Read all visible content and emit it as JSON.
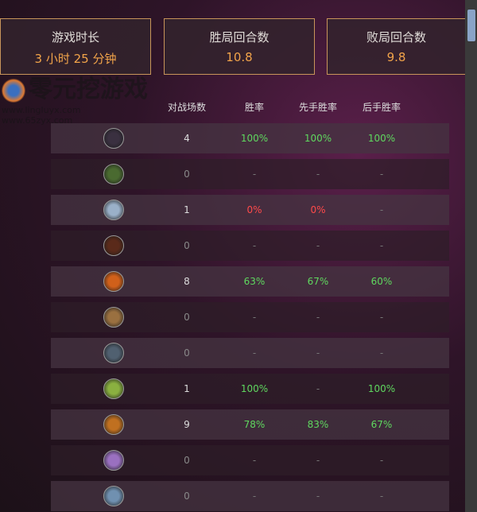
{
  "summary": [
    {
      "title": "游戏时长",
      "value": "3 小时 25 分钟"
    },
    {
      "title": "胜局回合数",
      "value": "10.8"
    },
    {
      "title": "败局回合数",
      "value": "9.8"
    }
  ],
  "table": {
    "headers": [
      "对战场数",
      "胜率",
      "先手胜率",
      "后手胜率"
    ],
    "rows": [
      {
        "icon": "class-icon-1",
        "games": "4",
        "win": "100%",
        "first": "100%",
        "second": "100%"
      },
      {
        "icon": "class-icon-2",
        "games": "0",
        "win": "-",
        "first": "-",
        "second": "-"
      },
      {
        "icon": "class-icon-3",
        "games": "1",
        "win": "0%",
        "first": "0%",
        "second": "-"
      },
      {
        "icon": "class-icon-4",
        "games": "0",
        "win": "-",
        "first": "-",
        "second": "-"
      },
      {
        "icon": "class-icon-5",
        "games": "8",
        "win": "63%",
        "first": "67%",
        "second": "60%"
      },
      {
        "icon": "class-icon-6",
        "games": "0",
        "win": "-",
        "first": "-",
        "second": "-"
      },
      {
        "icon": "class-icon-7",
        "games": "0",
        "win": "-",
        "first": "-",
        "second": "-"
      },
      {
        "icon": "class-icon-8",
        "games": "1",
        "win": "100%",
        "first": "-",
        "second": "100%"
      },
      {
        "icon": "class-icon-9",
        "games": "9",
        "win": "78%",
        "first": "83%",
        "second": "67%"
      },
      {
        "icon": "class-icon-10",
        "games": "0",
        "win": "-",
        "first": "-",
        "second": "-"
      },
      {
        "icon": "class-icon-11",
        "games": "0",
        "win": "-",
        "first": "-",
        "second": "-"
      }
    ]
  },
  "colors": {
    "good": "#5fd85f",
    "bad": "#ff4a4a",
    "none": "#777777",
    "accent": "#f2a44a"
  },
  "watermark": {
    "name": "零元挖游戏",
    "url": "www.lingluyx.com  www.65zyx.com"
  }
}
